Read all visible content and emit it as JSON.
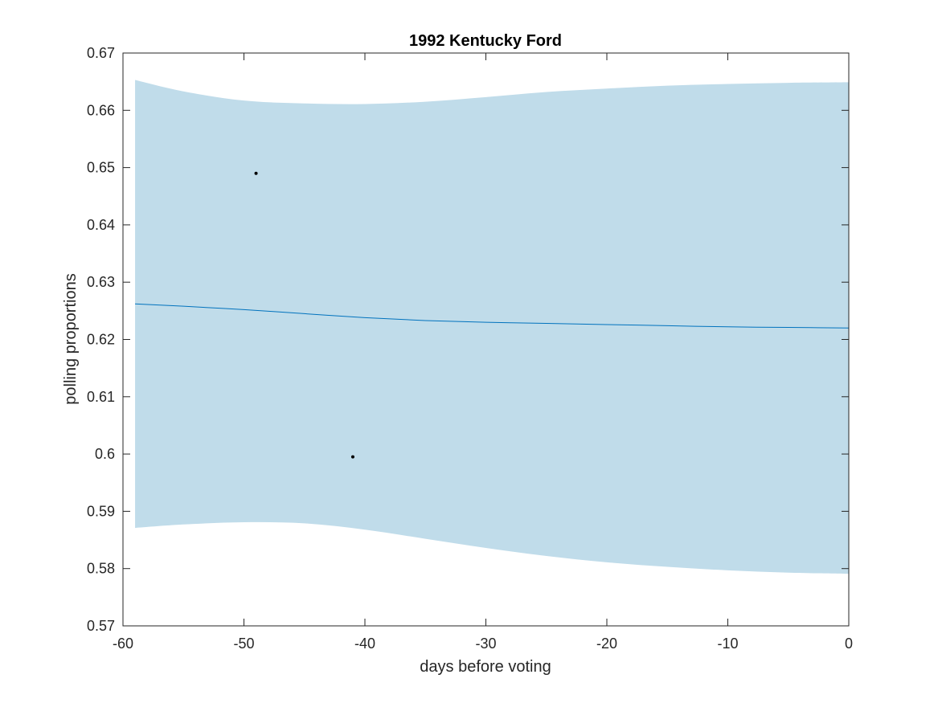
{
  "chart_data": {
    "type": "area",
    "title": "1992 Kentucky Ford",
    "xlabel": "days before voting",
    "ylabel": "polling proportions",
    "xlim": [
      -60,
      0
    ],
    "ylim": [
      0.57,
      0.67
    ],
    "x_ticks": [
      "-60",
      "-50",
      "-40",
      "-30",
      "-20",
      "-10",
      "0"
    ],
    "y_ticks": [
      "0.57",
      "0.58",
      "0.59",
      "0.6",
      "0.61",
      "0.62",
      "0.63",
      "0.64",
      "0.65",
      "0.66",
      "0.67"
    ],
    "grid": false,
    "colors": {
      "band": "#c0dcea",
      "line": "#0072bd",
      "points": "#000000",
      "axis": "#262626"
    },
    "band": {
      "x": [
        -59,
        -55,
        -50,
        -45,
        -40,
        -35,
        -30,
        -25,
        -20,
        -15,
        -10,
        -5,
        0
      ],
      "upper": [
        0.6653,
        0.6633,
        0.6617,
        0.6612,
        0.6611,
        0.6615,
        0.6623,
        0.6632,
        0.6638,
        0.6643,
        0.6646,
        0.6648,
        0.6649
      ],
      "lower": [
        0.5871,
        0.5877,
        0.5881,
        0.5879,
        0.5868,
        0.5852,
        0.5836,
        0.5822,
        0.5811,
        0.5803,
        0.5797,
        0.5793,
        0.5791
      ]
    },
    "series": [
      {
        "type": "line",
        "x": [
          -59,
          -55,
          -50,
          -45,
          -40,
          -35,
          -30,
          -25,
          -20,
          -15,
          -10,
          -5,
          0
        ],
        "values": [
          0.6262,
          0.6258,
          0.6252,
          0.6245,
          0.6238,
          0.6233,
          0.623,
          0.6228,
          0.6226,
          0.6224,
          0.6222,
          0.6221,
          0.622
        ]
      },
      {
        "type": "scatter",
        "x": [
          -49,
          -41
        ],
        "values": [
          0.649,
          0.5995
        ]
      }
    ]
  }
}
